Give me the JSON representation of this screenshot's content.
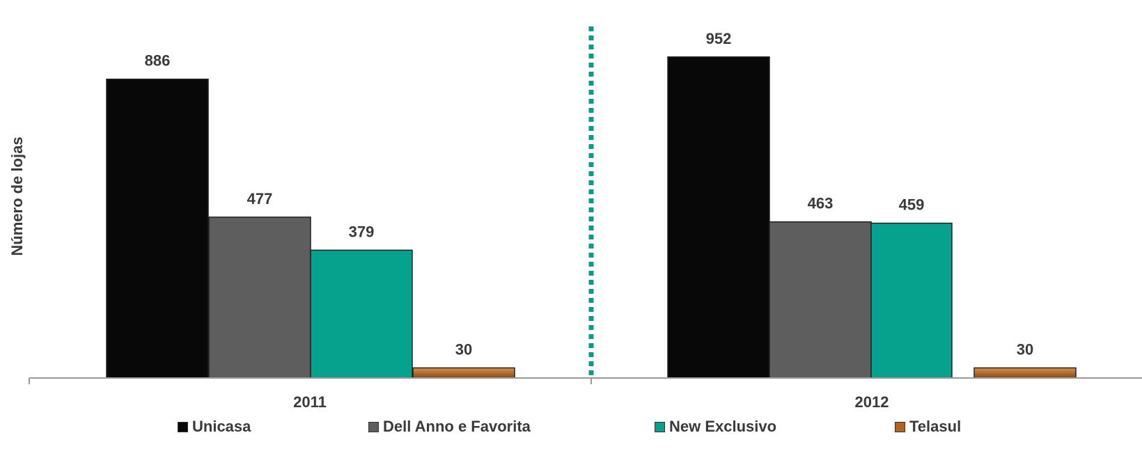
{
  "chart_data": {
    "type": "bar",
    "categories": [
      "2011",
      "2012"
    ],
    "series": [
      {
        "name": "Unicasa",
        "values": [
          886,
          952
        ],
        "color": "#080808"
      },
      {
        "name": "Dell Anno e Favorita",
        "values": [
          477,
          463
        ],
        "color": "#5e5e5e"
      },
      {
        "name": "New Exclusivo",
        "values": [
          379,
          459
        ],
        "color": "#07a28e"
      },
      {
        "name": "Telasul",
        "values": [
          30,
          30
        ],
        "color": "#b0651f"
      }
    ],
    "title": "",
    "xlabel": "",
    "ylabel": "Número de lojas",
    "ylim": [
      0,
      1000
    ],
    "grid": false,
    "legend": "bottom",
    "separator_color": "#0f9a88"
  }
}
